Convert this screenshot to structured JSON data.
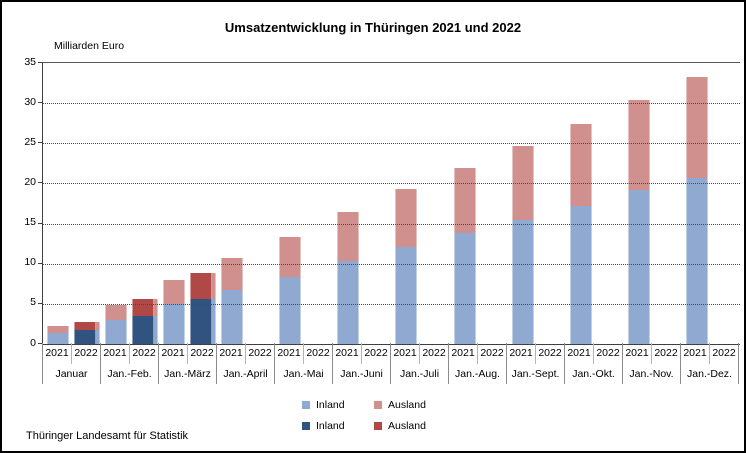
{
  "header": {
    "title": "Umsatzentwicklung in Thüringen 2021 und 2022"
  },
  "y_axis": {
    "unit_label": "Milliarden Euro"
  },
  "footer": {
    "source": "Thüringer Landesamt für Statistik"
  },
  "colors": {
    "inland_2021": "#8FA9D1",
    "ausland_2021": "#D0908E",
    "inland_2022": "#31537F",
    "ausland_2022": "#AF4846",
    "gridline": "#4a4a4a",
    "axis_line": "#3f3f3f"
  },
  "legend": {
    "rows": [
      [
        {
          "label": "Inland",
          "color": "#8FA9D1"
        },
        {
          "label": "Ausland",
          "color": "#D0908E"
        }
      ],
      [
        {
          "label": "Inland",
          "color": "#31537F"
        },
        {
          "label": "Ausland",
          "color": "#AF4846"
        }
      ]
    ]
  },
  "chart_data": {
    "type": "bar",
    "stacked": true,
    "title": "Umsatzentwicklung in Thüringen 2021 und 2022",
    "ylabel": "Milliarden Euro",
    "ylim": [
      0,
      35
    ],
    "ytick_step": 5,
    "grid": "dotted horizontal",
    "legend_position": "bottom center, two rows",
    "groups": [
      "Januar",
      "Jan.-Feb.",
      "Jan.-März",
      "Jan.-April",
      "Jan.-Mai",
      "Jan.-Juni",
      "Jan.-Juli",
      "Jan.-Aug.",
      "Jan.-Sept.",
      "Jan.-Okt.",
      "Jan.-Nov.",
      "Jan.-Dez."
    ],
    "sub_categories": [
      "2021",
      "2022"
    ],
    "series": [
      {
        "name": "Inland",
        "year": "2021",
        "color": "#8FA9D1",
        "values": [
          1.4,
          3.0,
          5.0,
          6.7,
          8.4,
          10.3,
          12.1,
          13.8,
          15.5,
          17.2,
          19.2,
          20.7
        ]
      },
      {
        "name": "Ausland",
        "year": "2021",
        "color": "#D0908E",
        "values": [
          0.9,
          1.8,
          3.0,
          4.0,
          5.0,
          6.2,
          7.2,
          8.1,
          9.2,
          10.2,
          11.2,
          12.6
        ]
      },
      {
        "name": "Inland",
        "year": "2022",
        "color": "#31537F",
        "values": [
          1.7,
          3.5,
          5.6,
          null,
          null,
          null,
          null,
          null,
          null,
          null,
          null,
          null
        ]
      },
      {
        "name": "Ausland",
        "year": "2022",
        "color": "#AF4846",
        "values": [
          1.1,
          2.1,
          3.3,
          null,
          null,
          null,
          null,
          null,
          null,
          null,
          null,
          null
        ]
      }
    ]
  }
}
